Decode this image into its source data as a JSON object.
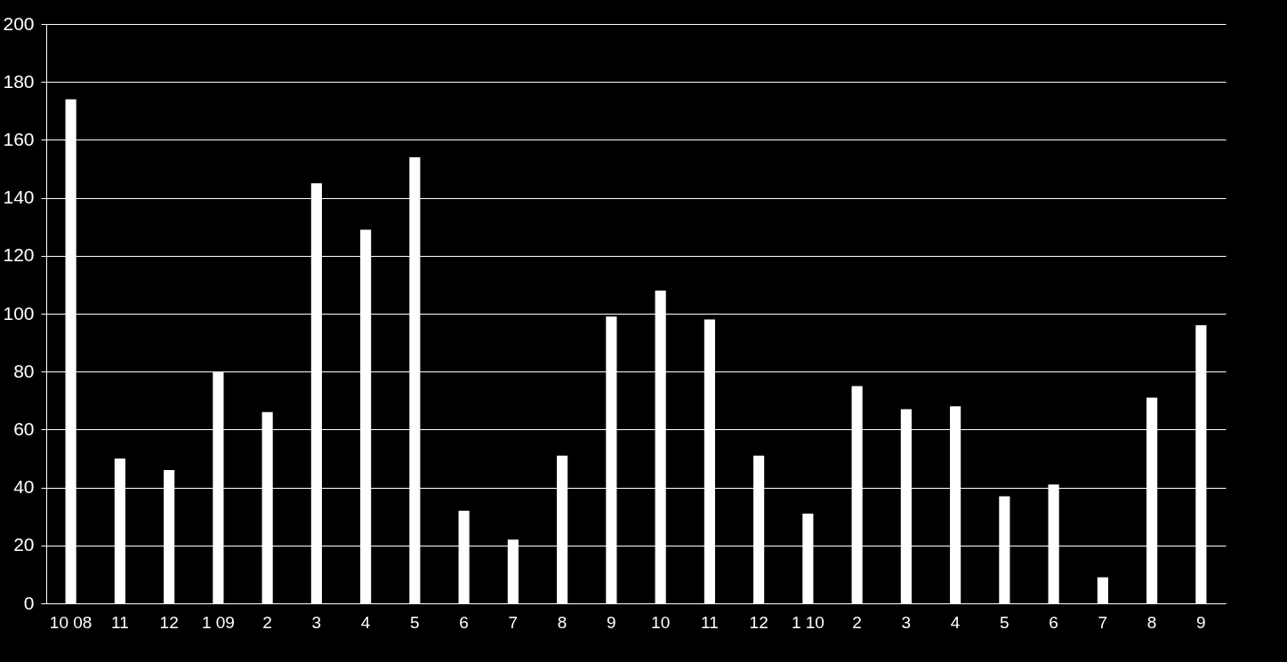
{
  "chart_data": {
    "type": "bar",
    "categories": [
      "10 08",
      "11",
      "12",
      "1 09",
      "2",
      "3",
      "4",
      "5",
      "6",
      "7",
      "8",
      "9",
      "10",
      "11",
      "12",
      "1 10",
      "2",
      "3",
      "4",
      "5",
      "6",
      "7",
      "8",
      "9"
    ],
    "values": [
      174,
      50,
      46,
      80,
      66,
      145,
      129,
      154,
      32,
      22,
      51,
      99,
      108,
      98,
      51,
      31,
      75,
      67,
      68,
      37,
      41,
      9,
      71,
      96
    ],
    "color": "#ffffff",
    "ylim": [
      0,
      200
    ],
    "yticks": [
      0,
      20,
      40,
      60,
      80,
      100,
      120,
      140,
      160,
      180,
      200
    ],
    "grid": "y"
  }
}
